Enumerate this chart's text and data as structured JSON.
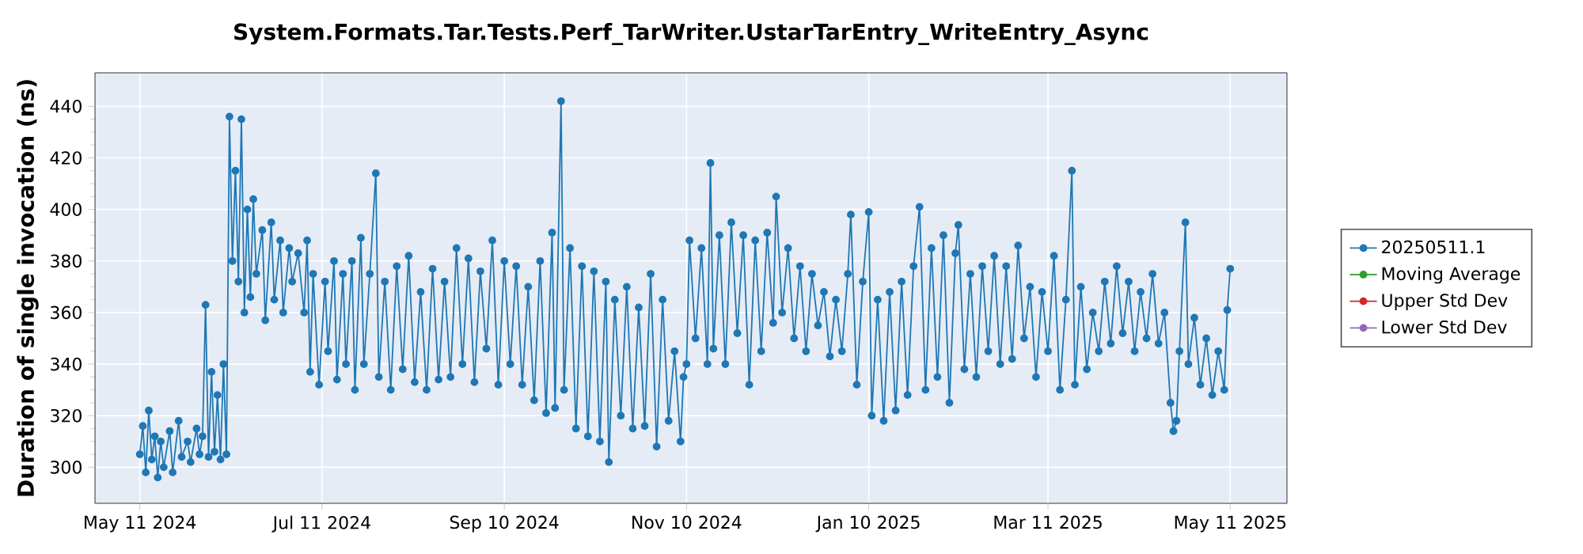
{
  "chart_data": {
    "type": "line",
    "title": "System.Formats.Tar.Tests.Perf_TarWriter.UstarTarEntry_WriteEntry_Async",
    "ylabel": "Duration of single invocation (ns)",
    "xlim": [
      "2024-04-26",
      "2025-05-30"
    ],
    "xticks": [
      {
        "value": "2024-05-11",
        "label": "May 11 2024"
      },
      {
        "value": "2024-07-11",
        "label": "Jul 11 2024"
      },
      {
        "value": "2024-09-10",
        "label": "Sep 10 2024"
      },
      {
        "value": "2024-11-10",
        "label": "Nov 10 2024"
      },
      {
        "value": "2025-01-10",
        "label": "Jan 10 2025"
      },
      {
        "value": "2025-03-11",
        "label": "Mar 11 2025"
      },
      {
        "value": "2025-05-11",
        "label": "May 11 2025"
      }
    ],
    "ylim": [
      286,
      453
    ],
    "yticks": [
      300,
      320,
      340,
      360,
      380,
      400,
      420,
      440
    ],
    "grid": true,
    "legend": "right",
    "marker": "circle",
    "line_style": "solid",
    "series": [
      {
        "name": "20250511.1",
        "color": "#1f77b4",
        "x": [
          "2024-05-11",
          "2024-05-12",
          "2024-05-13",
          "2024-05-14",
          "2024-05-15",
          "2024-05-16",
          "2024-05-17",
          "2024-05-18",
          "2024-05-19",
          "2024-05-21",
          "2024-05-22",
          "2024-05-24",
          "2024-05-25",
          "2024-05-27",
          "2024-05-28",
          "2024-05-30",
          "2024-05-31",
          "2024-06-01",
          "2024-06-02",
          "2024-06-03",
          "2024-06-04",
          "2024-06-05",
          "2024-06-06",
          "2024-06-07",
          "2024-06-08",
          "2024-06-09",
          "2024-06-10",
          "2024-06-11",
          "2024-06-12",
          "2024-06-13",
          "2024-06-14",
          "2024-06-15",
          "2024-06-16",
          "2024-06-17",
          "2024-06-18",
          "2024-06-19",
          "2024-06-21",
          "2024-06-22",
          "2024-06-24",
          "2024-06-25",
          "2024-06-27",
          "2024-06-28",
          "2024-06-30",
          "2024-07-01",
          "2024-07-03",
          "2024-07-05",
          "2024-07-06",
          "2024-07-07",
          "2024-07-08",
          "2024-07-10",
          "2024-07-12",
          "2024-07-13",
          "2024-07-15",
          "2024-07-16",
          "2024-07-18",
          "2024-07-19",
          "2024-07-21",
          "2024-07-22",
          "2024-07-24",
          "2024-07-25",
          "2024-07-27",
          "2024-07-29",
          "2024-07-30",
          "2024-08-01",
          "2024-08-03",
          "2024-08-05",
          "2024-08-07",
          "2024-08-09",
          "2024-08-11",
          "2024-08-13",
          "2024-08-15",
          "2024-08-17",
          "2024-08-19",
          "2024-08-21",
          "2024-08-23",
          "2024-08-25",
          "2024-08-27",
          "2024-08-29",
          "2024-08-31",
          "2024-09-02",
          "2024-09-04",
          "2024-09-06",
          "2024-09-08",
          "2024-09-10",
          "2024-09-12",
          "2024-09-14",
          "2024-09-16",
          "2024-09-18",
          "2024-09-20",
          "2024-09-22",
          "2024-09-24",
          "2024-09-26",
          "2024-09-27",
          "2024-09-29",
          "2024-09-30",
          "2024-10-02",
          "2024-10-04",
          "2024-10-06",
          "2024-10-08",
          "2024-10-10",
          "2024-10-12",
          "2024-10-14",
          "2024-10-15",
          "2024-10-17",
          "2024-10-19",
          "2024-10-21",
          "2024-10-23",
          "2024-10-25",
          "2024-10-27",
          "2024-10-29",
          "2024-10-31",
          "2024-11-02",
          "2024-11-04",
          "2024-11-06",
          "2024-11-08",
          "2024-11-09",
          "2024-11-10",
          "2024-11-11",
          "2024-11-13",
          "2024-11-15",
          "2024-11-17",
          "2024-11-18",
          "2024-11-19",
          "2024-11-21",
          "2024-11-23",
          "2024-11-25",
          "2024-11-27",
          "2024-11-29",
          "2024-12-01",
          "2024-12-03",
          "2024-12-05",
          "2024-12-07",
          "2024-12-09",
          "2024-12-10",
          "2024-12-12",
          "2024-12-14",
          "2024-12-16",
          "2024-12-18",
          "2024-12-20",
          "2024-12-22",
          "2024-12-24",
          "2024-12-26",
          "2024-12-28",
          "2024-12-30",
          "2025-01-01",
          "2025-01-03",
          "2025-01-04",
          "2025-01-06",
          "2025-01-08",
          "2025-01-10",
          "2025-01-11",
          "2025-01-13",
          "2025-01-15",
          "2025-01-17",
          "2025-01-19",
          "2025-01-21",
          "2025-01-23",
          "2025-01-25",
          "2025-01-27",
          "2025-01-29",
          "2025-01-31",
          "2025-02-02",
          "2025-02-04",
          "2025-02-06",
          "2025-02-08",
          "2025-02-09",
          "2025-02-11",
          "2025-02-13",
          "2025-02-15",
          "2025-02-17",
          "2025-02-19",
          "2025-02-21",
          "2025-02-23",
          "2025-02-25",
          "2025-02-27",
          "2025-03-01",
          "2025-03-03",
          "2025-03-05",
          "2025-03-07",
          "2025-03-09",
          "2025-03-11",
          "2025-03-13",
          "2025-03-15",
          "2025-03-17",
          "2025-03-19",
          "2025-03-20",
          "2025-03-22",
          "2025-03-24",
          "2025-03-26",
          "2025-03-28",
          "2025-03-30",
          "2025-04-01",
          "2025-04-03",
          "2025-04-05",
          "2025-04-07",
          "2025-04-09",
          "2025-04-11",
          "2025-04-13",
          "2025-04-15",
          "2025-04-17",
          "2025-04-19",
          "2025-04-21",
          "2025-04-22",
          "2025-04-23",
          "2025-04-24",
          "2025-04-26",
          "2025-04-27",
          "2025-04-29",
          "2025-05-01",
          "2025-05-03",
          "2025-05-05",
          "2025-05-07",
          "2025-05-09",
          "2025-05-10",
          "2025-05-11"
        ],
        "values": [
          305,
          316,
          298,
          322,
          303,
          312,
          296,
          310,
          300,
          314,
          298,
          318,
          304,
          310,
          302,
          315,
          305,
          312,
          363,
          304,
          337,
          306,
          328,
          303,
          340,
          305,
          436,
          380,
          415,
          372,
          435,
          360,
          400,
          366,
          404,
          375,
          392,
          357,
          395,
          365,
          388,
          360,
          385,
          372,
          383,
          360,
          388,
          337,
          375,
          332,
          372,
          345,
          380,
          334,
          375,
          340,
          380,
          330,
          389,
          340,
          375,
          414,
          335,
          372,
          330,
          378,
          338,
          382,
          333,
          368,
          330,
          377,
          334,
          372,
          335,
          385,
          340,
          381,
          333,
          376,
          346,
          388,
          332,
          380,
          340,
          378,
          332,
          370,
          326,
          380,
          321,
          391,
          323,
          442,
          330,
          385,
          315,
          378,
          312,
          376,
          310,
          372,
          302,
          365,
          320,
          370,
          315,
          362,
          316,
          375,
          308,
          365,
          318,
          345,
          310,
          335,
          340,
          388,
          350,
          385,
          340,
          418,
          346,
          390,
          340,
          395,
          352,
          390,
          332,
          388,
          345,
          391,
          356,
          405,
          360,
          385,
          350,
          378,
          345,
          375,
          355,
          368,
          343,
          365,
          345,
          375,
          398,
          332,
          372,
          399,
          320,
          365,
          318,
          368,
          322,
          372,
          328,
          378,
          401,
          330,
          385,
          335,
          390,
          325,
          383,
          394,
          338,
          375,
          335,
          378,
          345,
          382,
          340,
          378,
          342,
          386,
          350,
          370,
          335,
          368,
          345,
          382,
          330,
          365,
          415,
          332,
          370,
          338,
          360,
          345,
          372,
          348,
          378,
          352,
          372,
          345,
          368,
          350,
          375,
          348,
          360,
          325,
          314,
          318,
          345,
          395,
          340,
          358,
          332,
          350,
          328,
          345,
          330,
          361,
          377
        ]
      },
      {
        "name": "Moving Average",
        "color": "#2ca02c"
      },
      {
        "name": "Upper Std Dev",
        "color": "#d62728"
      },
      {
        "name": "Lower Std Dev",
        "color": "#9467bd"
      }
    ]
  }
}
